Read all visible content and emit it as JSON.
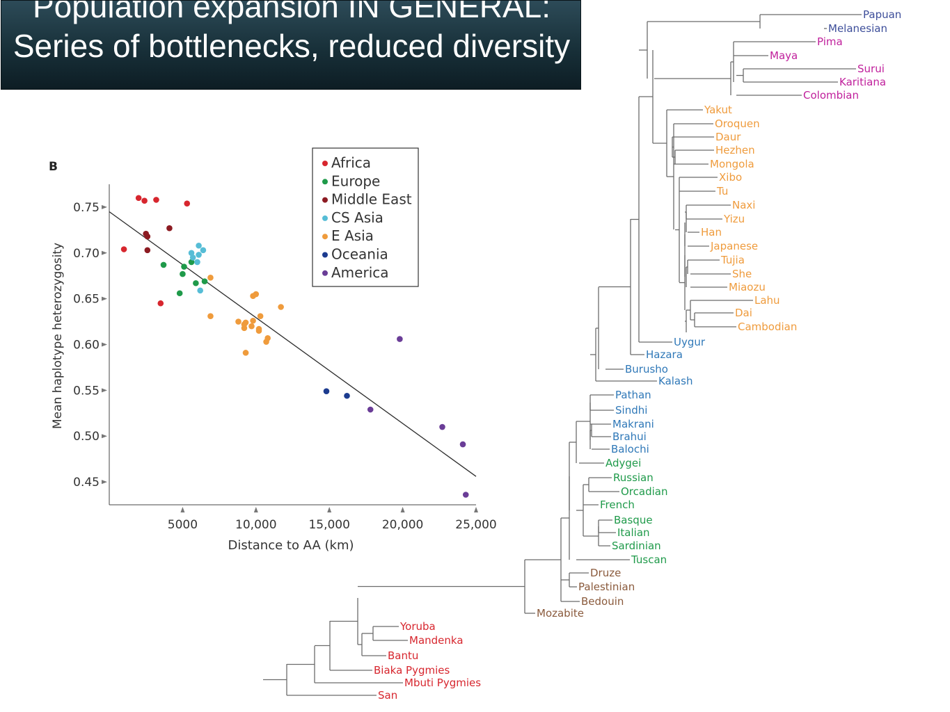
{
  "slide_title": "Population expansion IN GENERAL: Series of bottlenecks, reduced diversity",
  "chart_data": [
    {
      "type": "scatter",
      "panel_label": "B",
      "xlabel": "Distance to AA (km)",
      "ylabel": "Mean haplotype heterozygosity",
      "xlim": [
        0,
        25000
      ],
      "ylim": [
        0.425,
        0.775
      ],
      "x_ticks": [
        5000,
        10000,
        15000,
        20000,
        25000
      ],
      "x_tick_labels": [
        "5000",
        "10,000",
        "15,000",
        "20,000",
        "25,000"
      ],
      "y_ticks": [
        0.45,
        0.5,
        0.55,
        0.6,
        0.65,
        0.7,
        0.75
      ],
      "y_tick_labels": [
        "0.45",
        "0.50",
        "0.55",
        "0.60",
        "0.65",
        "0.70",
        "0.75"
      ],
      "grid": false,
      "legend_position": "top-right",
      "regression_line": {
        "x": [
          0,
          25000
        ],
        "y": [
          0.745,
          0.456
        ]
      },
      "series": [
        {
          "name": "Africa",
          "color": "#d7262e",
          "points": [
            [
              1000,
              0.704
            ],
            [
              2000,
              0.76
            ],
            [
              2400,
              0.757
            ],
            [
              3200,
              0.758
            ],
            [
              3500,
              0.645
            ],
            [
              5300,
              0.754
            ]
          ]
        },
        {
          "name": "Europe",
          "color": "#1f9a4a",
          "points": [
            [
              3700,
              0.687
            ],
            [
              4800,
              0.656
            ],
            [
              5000,
              0.677
            ],
            [
              5100,
              0.685
            ],
            [
              5600,
              0.69
            ],
            [
              5900,
              0.667
            ],
            [
              6500,
              0.669
            ]
          ]
        },
        {
          "name": "Middle East",
          "color": "#8c1b22",
          "points": [
            [
              2500,
              0.721
            ],
            [
              2600,
              0.718
            ],
            [
              2600,
              0.703
            ],
            [
              4100,
              0.727
            ]
          ]
        },
        {
          "name": "CS Asia",
          "color": "#56bdd6",
          "points": [
            [
              5600,
              0.7
            ],
            [
              5700,
              0.695
            ],
            [
              6000,
              0.69
            ],
            [
              6100,
              0.708
            ],
            [
              6100,
              0.698
            ],
            [
              6400,
              0.703
            ],
            [
              6200,
              0.659
            ]
          ]
        },
        {
          "name": "E Asia",
          "color": "#ef9b3c",
          "points": [
            [
              6900,
              0.673
            ],
            [
              6900,
              0.631
            ],
            [
              8800,
              0.625
            ],
            [
              9200,
              0.618
            ],
            [
              9200,
              0.622
            ],
            [
              9300,
              0.591
            ],
            [
              9300,
              0.624
            ],
            [
              9700,
              0.62
            ],
            [
              9800,
              0.653
            ],
            [
              9800,
              0.626
            ],
            [
              10000,
              0.655
            ],
            [
              10200,
              0.615
            ],
            [
              10200,
              0.617
            ],
            [
              10300,
              0.631
            ],
            [
              10700,
              0.603
            ],
            [
              10800,
              0.607
            ],
            [
              11700,
              0.641
            ]
          ]
        },
        {
          "name": "Oceania",
          "color": "#1c3b8f",
          "points": [
            [
              14800,
              0.549
            ],
            [
              16200,
              0.544
            ]
          ]
        },
        {
          "name": "America",
          "color": "#6a3d97",
          "points": [
            [
              17800,
              0.529
            ],
            [
              19800,
              0.606
            ],
            [
              22700,
              0.51
            ],
            [
              24100,
              0.491
            ],
            [
              24300,
              0.436
            ]
          ]
        }
      ]
    },
    {
      "type": "dendrogram",
      "leaves": [
        {
          "name": "Papuan",
          "group": "Oceania"
        },
        {
          "name": "Melanesian",
          "group": "Oceania"
        },
        {
          "name": "Pima",
          "group": "America"
        },
        {
          "name": "Maya",
          "group": "America"
        },
        {
          "name": "Surui",
          "group": "America"
        },
        {
          "name": "Karitiana",
          "group": "America"
        },
        {
          "name": "Colombian",
          "group": "America"
        },
        {
          "name": "Yakut",
          "group": "E Asia"
        },
        {
          "name": "Oroquen",
          "group": "E Asia"
        },
        {
          "name": "Daur",
          "group": "E Asia"
        },
        {
          "name": "Hezhen",
          "group": "E Asia"
        },
        {
          "name": "Mongola",
          "group": "E Asia"
        },
        {
          "name": "Xibo",
          "group": "E Asia"
        },
        {
          "name": "Tu",
          "group": "E Asia"
        },
        {
          "name": "Naxi",
          "group": "E Asia"
        },
        {
          "name": "Yizu",
          "group": "E Asia"
        },
        {
          "name": "Han",
          "group": "E Asia"
        },
        {
          "name": "Japanese",
          "group": "E Asia"
        },
        {
          "name": "Tujia",
          "group": "E Asia"
        },
        {
          "name": "She",
          "group": "E Asia"
        },
        {
          "name": "Miaozu",
          "group": "E Asia"
        },
        {
          "name": "Lahu",
          "group": "E Asia"
        },
        {
          "name": "Dai",
          "group": "E Asia"
        },
        {
          "name": "Cambodian",
          "group": "E Asia"
        },
        {
          "name": "Uygur",
          "group": "CS Asia"
        },
        {
          "name": "Hazara",
          "group": "CS Asia"
        },
        {
          "name": "Burusho",
          "group": "CS Asia"
        },
        {
          "name": "Kalash",
          "group": "CS Asia"
        },
        {
          "name": "Pathan",
          "group": "CS Asia"
        },
        {
          "name": "Sindhi",
          "group": "CS Asia"
        },
        {
          "name": "Makrani",
          "group": "CS Asia"
        },
        {
          "name": "Brahui",
          "group": "CS Asia"
        },
        {
          "name": "Balochi",
          "group": "CS Asia"
        },
        {
          "name": "Adygei",
          "group": "Europe"
        },
        {
          "name": "Russian",
          "group": "Europe"
        },
        {
          "name": "Orcadian",
          "group": "Europe"
        },
        {
          "name": "French",
          "group": "Europe"
        },
        {
          "name": "Basque",
          "group": "Europe"
        },
        {
          "name": "Italian",
          "group": "Europe"
        },
        {
          "name": "Sardinian",
          "group": "Europe"
        },
        {
          "name": "Tuscan",
          "group": "Europe"
        },
        {
          "name": "Druze",
          "group": "Middle East"
        },
        {
          "name": "Palestinian",
          "group": "Middle East"
        },
        {
          "name": "Bedouin",
          "group": "Middle East"
        },
        {
          "name": "Mozabite",
          "group": "Middle East"
        },
        {
          "name": "Yoruba",
          "group": "Africa"
        },
        {
          "name": "Mandenka",
          "group": "Africa"
        },
        {
          "name": "Bantu",
          "group": "Africa"
        },
        {
          "name": "Biaka Pygmies",
          "group": "Africa"
        },
        {
          "name": "Mbuti Pygmies",
          "group": "Africa"
        },
        {
          "name": "San",
          "group": "Africa"
        }
      ],
      "group_colors": {
        "Africa": "#d7262e",
        "Middle East": "#8a5a3c",
        "Europe": "#1f9a4a",
        "CS Asia": "#2f78b8",
        "E Asia": "#ef9b3c",
        "Oceania": "#3d4e9a",
        "America": "#c0209c"
      }
    }
  ]
}
